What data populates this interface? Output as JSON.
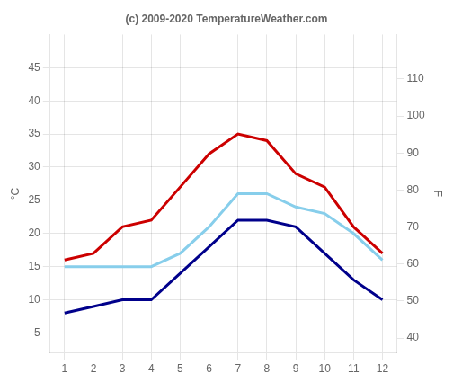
{
  "chart_data": {
    "type": "line",
    "title": "(c) 2009-2020 TemperatureWeather.com",
    "x": [
      1,
      2,
      3,
      4,
      5,
      6,
      7,
      8,
      9,
      10,
      11,
      12
    ],
    "xlim": [
      0.5,
      12.5
    ],
    "xticks": [
      1,
      2,
      3,
      4,
      5,
      6,
      7,
      8,
      9,
      10,
      11,
      12
    ],
    "ylabel": "°C",
    "ylim": [
      2,
      50
    ],
    "yticks": [
      5,
      10,
      15,
      20,
      25,
      30,
      35,
      40,
      45
    ],
    "y2label": "F",
    "y2lim": [
      36,
      122
    ],
    "y2ticks": [
      40,
      50,
      60,
      70,
      80,
      90,
      100,
      110
    ],
    "grid": true,
    "series": [
      {
        "color": "#cc0000",
        "values": [
          16,
          17,
          21,
          22,
          27,
          32,
          35,
          34,
          29,
          27,
          21,
          17
        ]
      },
      {
        "color": "#00008b",
        "values": [
          8,
          9,
          10,
          10,
          14,
          18,
          22,
          22,
          21,
          17,
          13,
          10
        ]
      },
      {
        "color": "#87ceeb",
        "values": [
          15,
          15,
          15,
          15,
          17,
          21,
          26,
          26,
          24,
          23,
          20,
          16
        ]
      }
    ]
  }
}
